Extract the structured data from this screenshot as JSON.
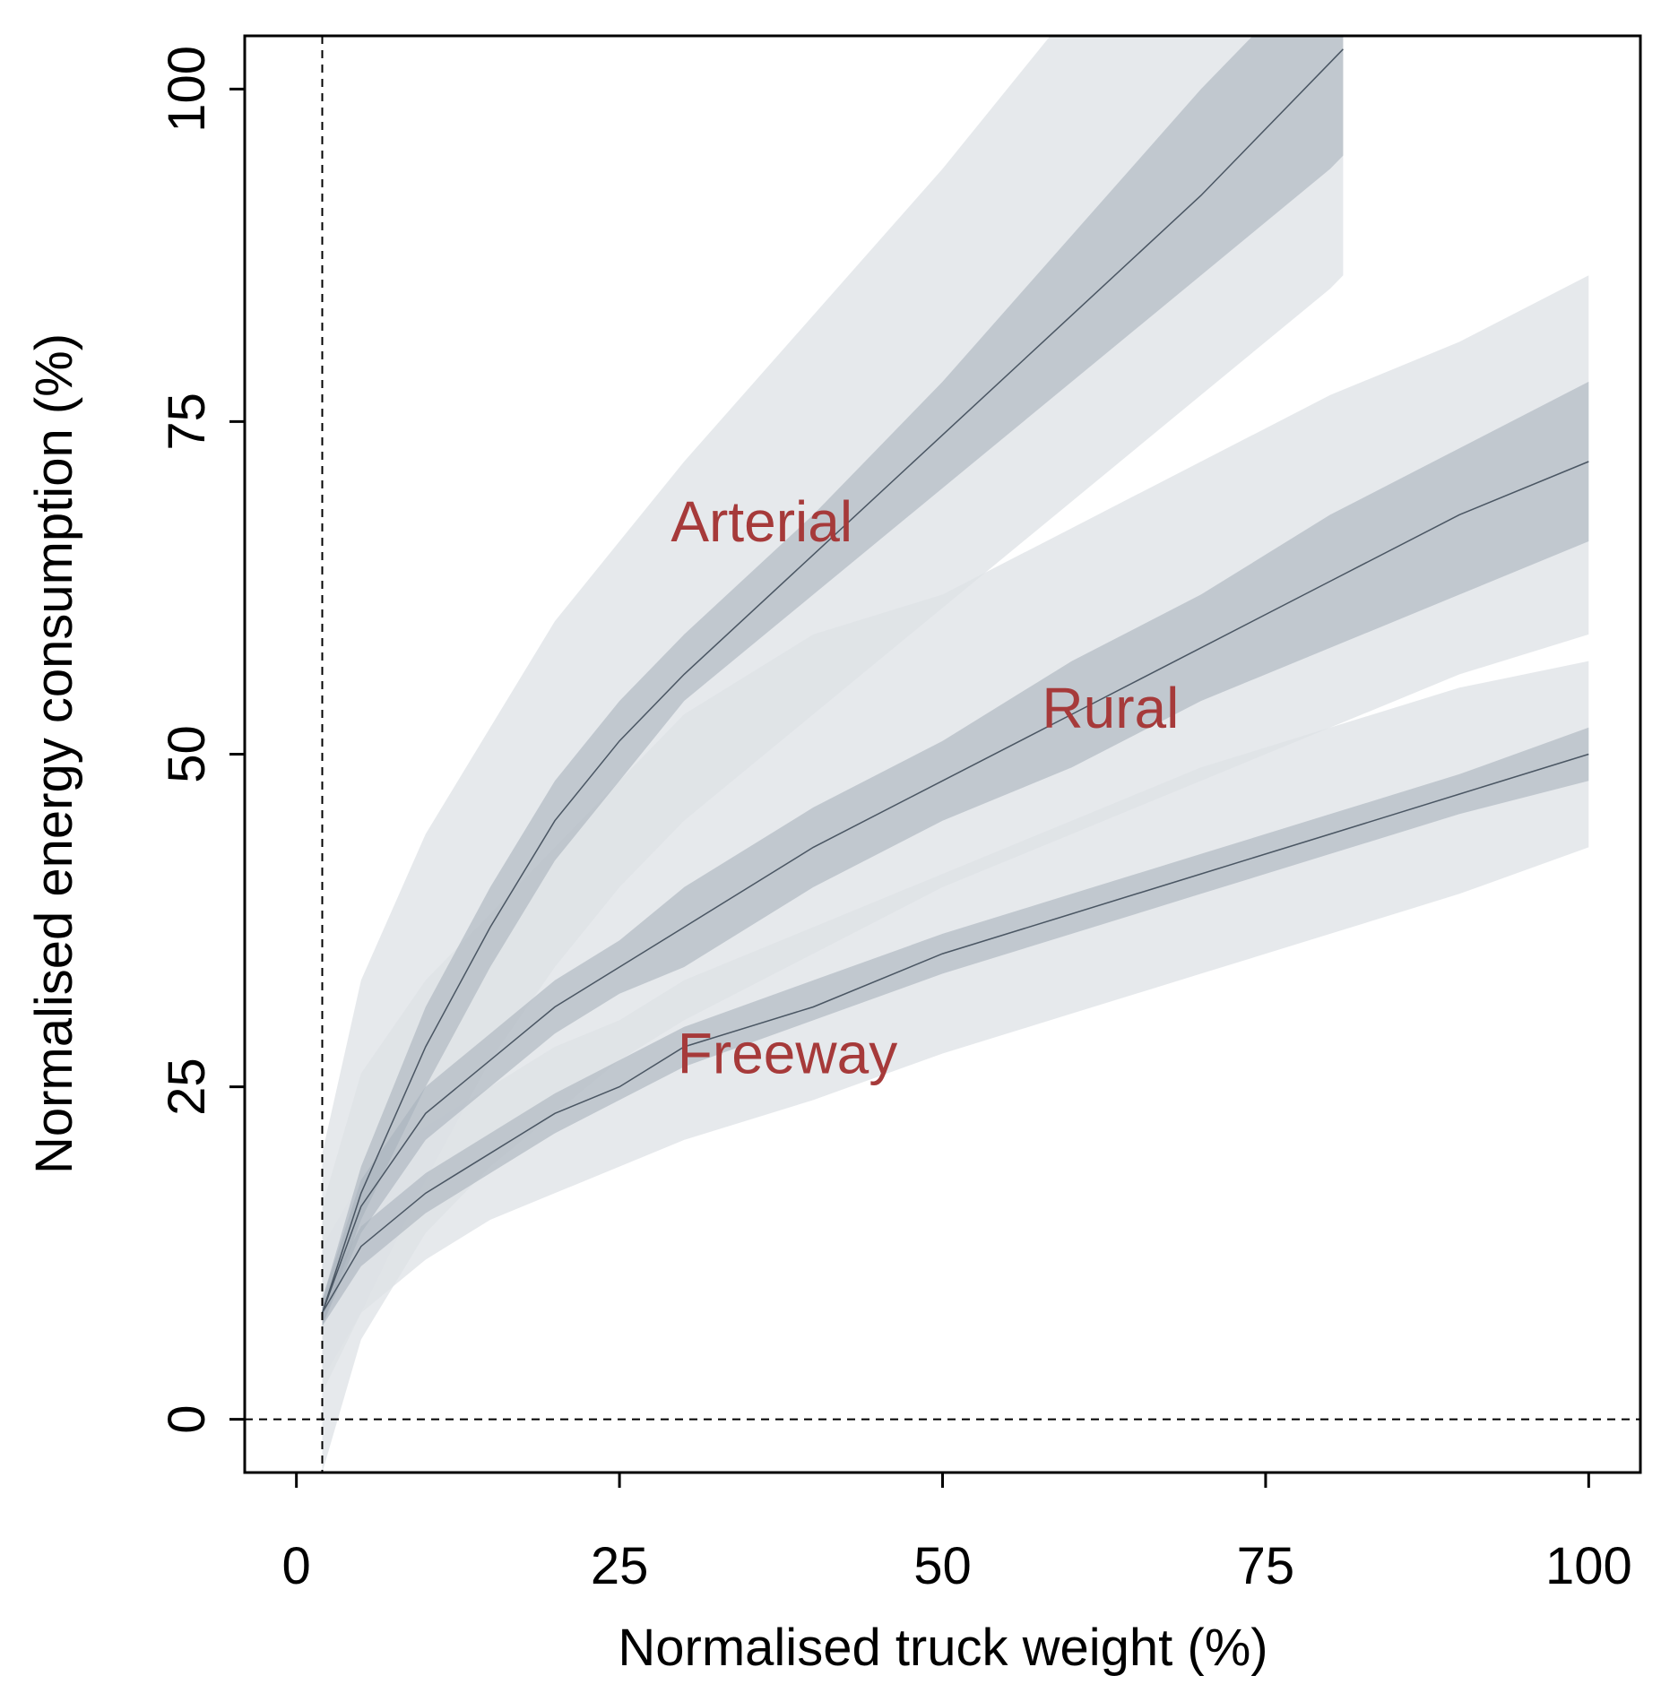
{
  "chart_data": {
    "type": "line",
    "title": "",
    "xlabel": "Normalised truck weight (%)",
    "ylabel": "Normalised energy consumption (%)",
    "xlim": [
      -4,
      104
    ],
    "ylim": [
      -4,
      104
    ],
    "xticks": [
      0,
      25,
      50,
      75,
      100
    ],
    "yticks": [
      0,
      25,
      50,
      75,
      100
    ],
    "grid": false,
    "reference_lines": {
      "x": 2,
      "y": 0
    },
    "series": [
      {
        "name": "Arterial",
        "label_pos": [
          36,
          66
        ],
        "x": [
          2,
          5,
          10,
          15,
          20,
          25,
          30,
          40,
          50,
          60,
          70,
          80,
          81
        ],
        "y": [
          8,
          17,
          28,
          37,
          45,
          51,
          56,
          65,
          74,
          83,
          92,
          102,
          103
        ],
        "ci_inner_lower": [
          7,
          15,
          25,
          34,
          42,
          48,
          54,
          62,
          70,
          78,
          86,
          94,
          95
        ],
        "ci_inner_upper": [
          9,
          19,
          31,
          40,
          48,
          54,
          59,
          68,
          78,
          89,
          100,
          110,
          111
        ],
        "ci_outer_lower": [
          2,
          8,
          18,
          27,
          34,
          40,
          45,
          53,
          61,
          69,
          77,
          85,
          86
        ],
        "ci_outer_upper": [
          20,
          33,
          44,
          52,
          60,
          66,
          72,
          83,
          94,
          106,
          117,
          128,
          129
        ]
      },
      {
        "name": "Rural",
        "label_pos": [
          63,
          52
        ],
        "x": [
          2,
          5,
          10,
          15,
          20,
          25,
          30,
          40,
          50,
          60,
          70,
          80,
          90,
          100
        ],
        "y": [
          8,
          16,
          23,
          27,
          31,
          34,
          37,
          43,
          48,
          53,
          58,
          63,
          68,
          72
        ],
        "ci_inner_lower": [
          7,
          14,
          21,
          25,
          29,
          32,
          34,
          40,
          45,
          49,
          54,
          58,
          62,
          66
        ],
        "ci_inner_upper": [
          9,
          18,
          25,
          29,
          33,
          36,
          40,
          46,
          51,
          57,
          62,
          68,
          73,
          78
        ],
        "ci_outer_lower": [
          -4,
          6,
          14,
          19,
          23,
          27,
          30,
          35,
          40,
          44,
          48,
          52,
          56,
          59
        ],
        "ci_outer_upper": [
          16,
          26,
          33,
          38,
          43,
          48,
          53,
          59,
          62,
          67,
          72,
          77,
          81,
          86
        ]
      },
      {
        "name": "Freeway",
        "label_pos": [
          38,
          26
        ],
        "x": [
          2,
          5,
          10,
          15,
          20,
          25,
          30,
          40,
          50,
          60,
          70,
          80,
          90,
          100
        ],
        "y": [
          8,
          13,
          17,
          20,
          23,
          25,
          28,
          31,
          35,
          38,
          41,
          44,
          47,
          50
        ],
        "ci_inner_lower": [
          7,
          11.5,
          15.5,
          18.5,
          21.5,
          24,
          26.5,
          30,
          33.5,
          36.5,
          39.5,
          42.5,
          45.5,
          48
        ],
        "ci_inner_upper": [
          9,
          14.5,
          18.5,
          21.5,
          24.5,
          27,
          29.5,
          33,
          36.5,
          39.5,
          42.5,
          45.5,
          48.5,
          52
        ],
        "ci_outer_lower": [
          3,
          8,
          12,
          15,
          17,
          19,
          21,
          24,
          27.5,
          30.5,
          33.5,
          36.5,
          39.5,
          43
        ],
        "ci_outer_upper": [
          13,
          18,
          22,
          25,
          28,
          30,
          33,
          37,
          41,
          45,
          49,
          52,
          55,
          57
        ]
      }
    ]
  },
  "style": {
    "outer_band_color": "#dde1e5",
    "inner_band_color": "#a8b3bd",
    "line_color": "#4a5663",
    "label_color": "#a63a3a"
  }
}
